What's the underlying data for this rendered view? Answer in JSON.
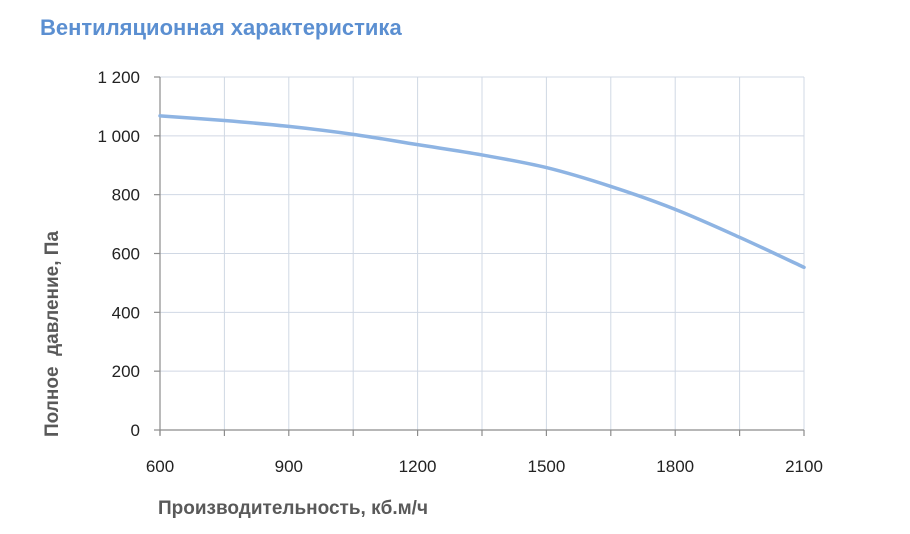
{
  "chart_data": {
    "type": "line",
    "title": "Вентиляционная характеристика",
    "xlabel": "Производительность, кб.м/ч",
    "ylabel": "Полное  давление, Па",
    "xlim": [
      600,
      2100
    ],
    "ylim": [
      0,
      1200
    ],
    "x_ticks": [
      600,
      900,
      1200,
      1500,
      1800,
      2100
    ],
    "x_minor_ticks": [
      750,
      1050,
      1350,
      1650,
      1950
    ],
    "x_tick_labels": [
      "600",
      "900",
      "1200",
      "1500",
      "1800",
      "2100"
    ],
    "y_ticks": [
      0,
      200,
      400,
      600,
      800,
      1000,
      1200
    ],
    "y_tick_labels": [
      "0",
      "200",
      "400",
      "600",
      "800",
      "1 000",
      "1 200"
    ],
    "grid": true,
    "series": [
      {
        "color": "#8eb4e3",
        "x": [
          600,
          750,
          900,
          1050,
          1200,
          1350,
          1500,
          1650,
          1800,
          1950,
          2100
        ],
        "y": [
          1068,
          1052,
          1032,
          1005,
          970,
          935,
          892,
          828,
          750,
          655,
          553
        ]
      }
    ],
    "colors": {
      "title": "#5b8fd1",
      "line": "#8eb4e3",
      "grid": "#d0d8e4",
      "axis": "#8c8c8c",
      "axis_title": "#595959",
      "tick_label": "#222222"
    }
  }
}
